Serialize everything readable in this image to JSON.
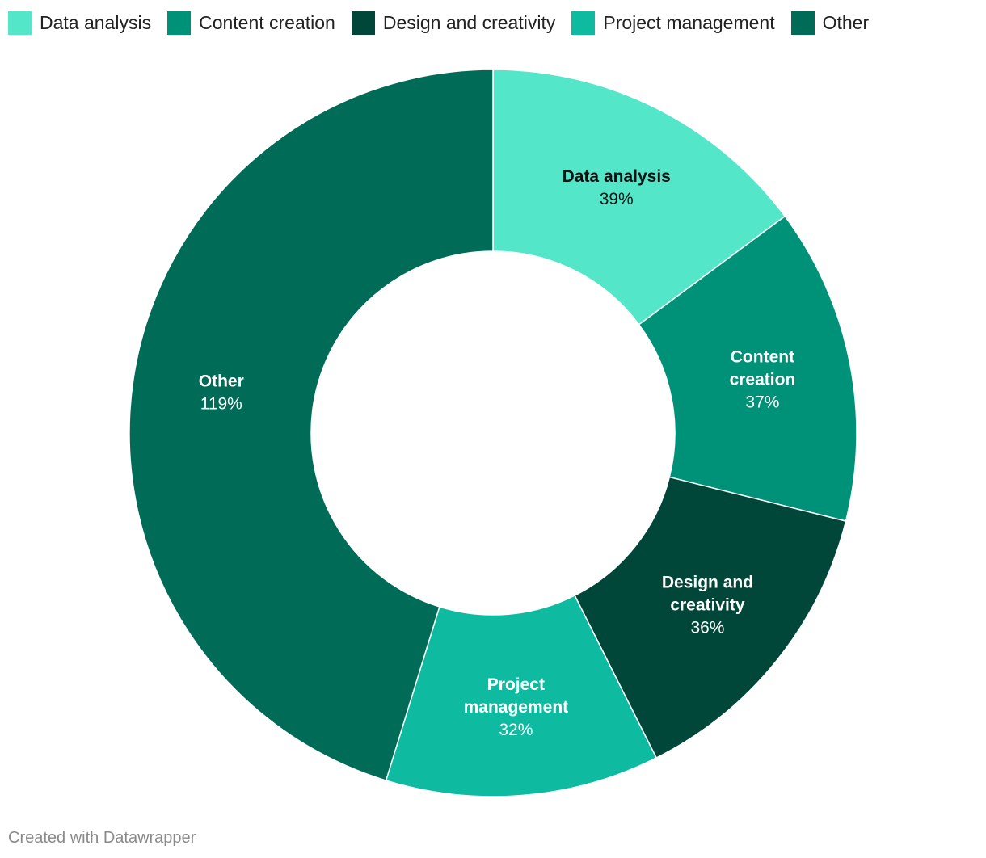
{
  "chart_data": {
    "type": "pie",
    "variant": "donut",
    "categories": [
      "Data analysis",
      "Content creation",
      "Design and creativity",
      "Project management",
      "Other"
    ],
    "values": [
      39,
      37,
      36,
      32,
      119
    ],
    "value_labels": [
      "39%",
      "37%",
      "36%",
      "32%",
      "119%"
    ],
    "label_lines": [
      [
        "Data analysis"
      ],
      [
        "Content",
        "creation"
      ],
      [
        "Design and",
        "creativity"
      ],
      [
        "Project",
        "management"
      ],
      [
        "Other"
      ]
    ],
    "colors": [
      "#54e6c9",
      "#009278",
      "#00473a",
      "#0ebba1",
      "#006b56"
    ],
    "label_colors": [
      "#111111",
      "#ffffff",
      "#ffffff",
      "#ffffff",
      "#ffffff"
    ],
    "legend_position": "top-left"
  },
  "legend": {
    "items": [
      {
        "label": "Data analysis",
        "color": "#54e6c9"
      },
      {
        "label": "Content creation",
        "color": "#009278"
      },
      {
        "label": "Design and creativity",
        "color": "#00473a"
      },
      {
        "label": "Project management",
        "color": "#0ebba1"
      },
      {
        "label": "Other",
        "color": "#006b56"
      }
    ]
  },
  "footer": {
    "credit": "Created with Datawrapper"
  }
}
